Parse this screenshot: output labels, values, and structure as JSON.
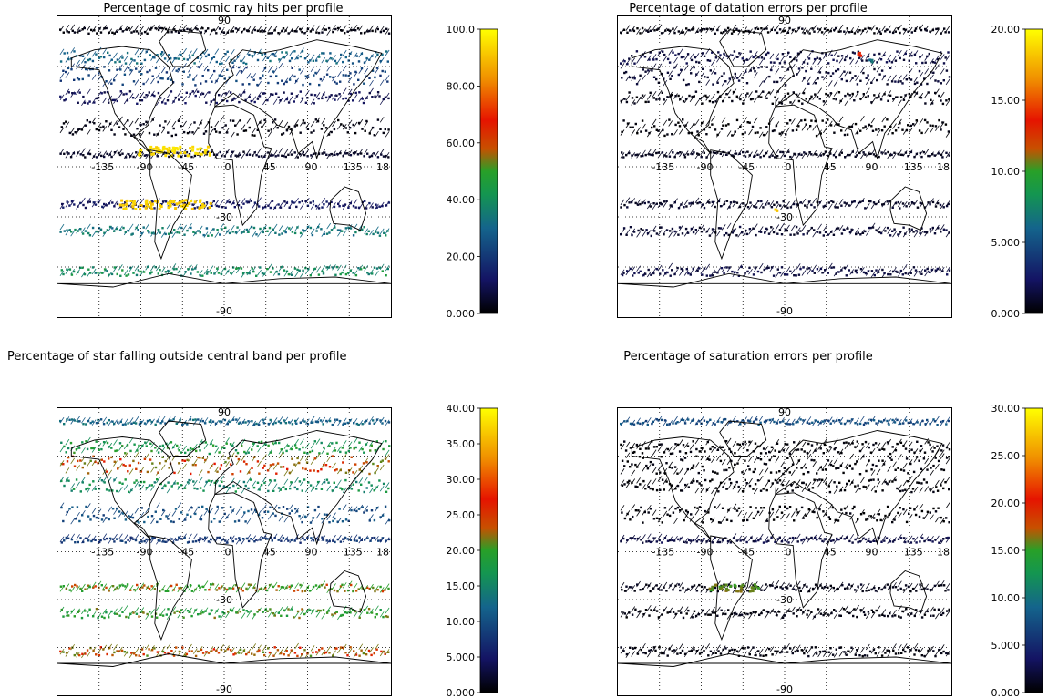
{
  "panels": [
    {
      "title": "Percentage of cosmic ray hits per profile",
      "map_labels": {
        "top": "90",
        "equator": [
          "-135",
          "-90",
          "-45",
          "0",
          "45",
          "90",
          "135",
          "18"
        ],
        "lat_mid": "-30",
        "bottom": "-90"
      },
      "colorbar": {
        "ticks": [
          "100.0",
          "80.00",
          "60.00",
          "40.00",
          "20.00",
          "0.000"
        ],
        "vmin": 0,
        "vmax": 100
      },
      "bands": [
        {
          "lat": 82,
          "level": 0.02,
          "thick": 6
        },
        {
          "lat": 66,
          "level": 0.3,
          "thick": 14
        },
        {
          "lat": 55,
          "level": 0.22,
          "thick": 20
        },
        {
          "lat": 42,
          "level": 0.1,
          "thick": 14
        },
        {
          "lat": 24,
          "level": 0.02,
          "thick": 18
        },
        {
          "lat": 8,
          "level": 0.05,
          "thick": 6
        },
        {
          "lat": -22,
          "level": 0.12,
          "thick": 8
        },
        {
          "lat": -38,
          "level": 0.35,
          "thick": 10
        },
        {
          "lat": -62,
          "level": 0.4,
          "thick": 10
        }
      ],
      "hotspots": [
        {
          "lon": -55,
          "lat": 10,
          "w": 80,
          "h": 10,
          "level": 0.97
        },
        {
          "lon": -65,
          "lat": -22,
          "w": 100,
          "h": 10,
          "level": 0.95
        }
      ]
    },
    {
      "title": "Percentage of datation errors per profile",
      "map_labels": {
        "top": "90",
        "equator": [
          "-135",
          "-90",
          "-45",
          "0",
          "45",
          "90",
          "135",
          "18"
        ],
        "lat_mid": "-30",
        "bottom": "-90"
      },
      "colorbar": {
        "ticks": [
          "20.00",
          "15.00",
          "10.00",
          "5.000",
          "0.000"
        ],
        "vmin": 0,
        "vmax": 20
      },
      "bands": [
        {
          "lat": 82,
          "level": 0.02,
          "thick": 6
        },
        {
          "lat": 66,
          "level": 0.08,
          "thick": 14
        },
        {
          "lat": 55,
          "level": 0.06,
          "thick": 20
        },
        {
          "lat": 42,
          "level": 0.02,
          "thick": 14
        },
        {
          "lat": 24,
          "level": 0.01,
          "thick": 18
        },
        {
          "lat": 8,
          "level": 0.04,
          "thick": 6
        },
        {
          "lat": -22,
          "level": 0.05,
          "thick": 8
        },
        {
          "lat": -38,
          "level": 0.06,
          "thick": 10
        },
        {
          "lat": -62,
          "level": 0.08,
          "thick": 10
        }
      ],
      "hotspots": [
        {
          "lon": 80,
          "lat": 68,
          "w": 4,
          "h": 4,
          "level": 0.7
        },
        {
          "lon": 92,
          "lat": 64,
          "w": 4,
          "h": 4,
          "level": 0.35
        },
        {
          "lon": -10,
          "lat": -25,
          "w": 3,
          "h": 3,
          "level": 0.95
        }
      ]
    },
    {
      "title": "Percentage of star falling outside central band per profile",
      "map_labels": {
        "top": "90",
        "equator": [
          "-135",
          "-90",
          "-45",
          "0",
          "45",
          "90",
          "135",
          "18"
        ],
        "lat_mid": "-30",
        "bottom": "-90"
      },
      "colorbar": {
        "ticks": [
          "40.00",
          "35.00",
          "30.00",
          "25.00",
          "20.00",
          "15.00",
          "10.00",
          "5.000",
          "0.000"
        ],
        "vmin": 0,
        "vmax": 40
      },
      "bands": [
        {
          "lat": 82,
          "level": 0.3,
          "thick": 6
        },
        {
          "lat": 66,
          "level": 0.45,
          "thick": 14
        },
        {
          "lat": 55,
          "level": 0.6,
          "thick": 20
        },
        {
          "lat": 42,
          "level": 0.4,
          "thick": 14
        },
        {
          "lat": 24,
          "level": 0.25,
          "thick": 18
        },
        {
          "lat": 8,
          "level": 0.2,
          "thick": 6
        },
        {
          "lat": -22,
          "level": 0.55,
          "thick": 8
        },
        {
          "lat": -38,
          "level": 0.5,
          "thick": 10
        },
        {
          "lat": -62,
          "level": 0.6,
          "thick": 10
        }
      ],
      "hotspots": []
    },
    {
      "title": "Percentage of saturation errors per profile",
      "map_labels": {
        "top": "90",
        "equator": [
          "-135",
          "-90",
          "-45",
          "0",
          "45",
          "90",
          "135",
          "18"
        ],
        "lat_mid": "-30",
        "bottom": "-90"
      },
      "colorbar": {
        "ticks": [
          "30.00",
          "25.00",
          "20.00",
          "15.00",
          "10.00",
          "5.000",
          "0.000"
        ],
        "vmin": 0,
        "vmax": 30
      },
      "bands": [
        {
          "lat": 82,
          "level": 0.25,
          "thick": 6
        },
        {
          "lat": 66,
          "level": 0.01,
          "thick": 14
        },
        {
          "lat": 55,
          "level": 0.01,
          "thick": 20
        },
        {
          "lat": 42,
          "level": 0.01,
          "thick": 14
        },
        {
          "lat": 24,
          "level": 0.01,
          "thick": 18
        },
        {
          "lat": 8,
          "level": 0.08,
          "thick": 6
        },
        {
          "lat": -22,
          "level": 0.03,
          "thick": 8
        },
        {
          "lat": -38,
          "level": 0.02,
          "thick": 10
        },
        {
          "lat": -62,
          "level": 0.02,
          "thick": 10
        }
      ],
      "hotspots": [
        {
          "lon": -55,
          "lat": -22,
          "w": 60,
          "h": 8,
          "level": 0.55
        }
      ]
    }
  ]
}
